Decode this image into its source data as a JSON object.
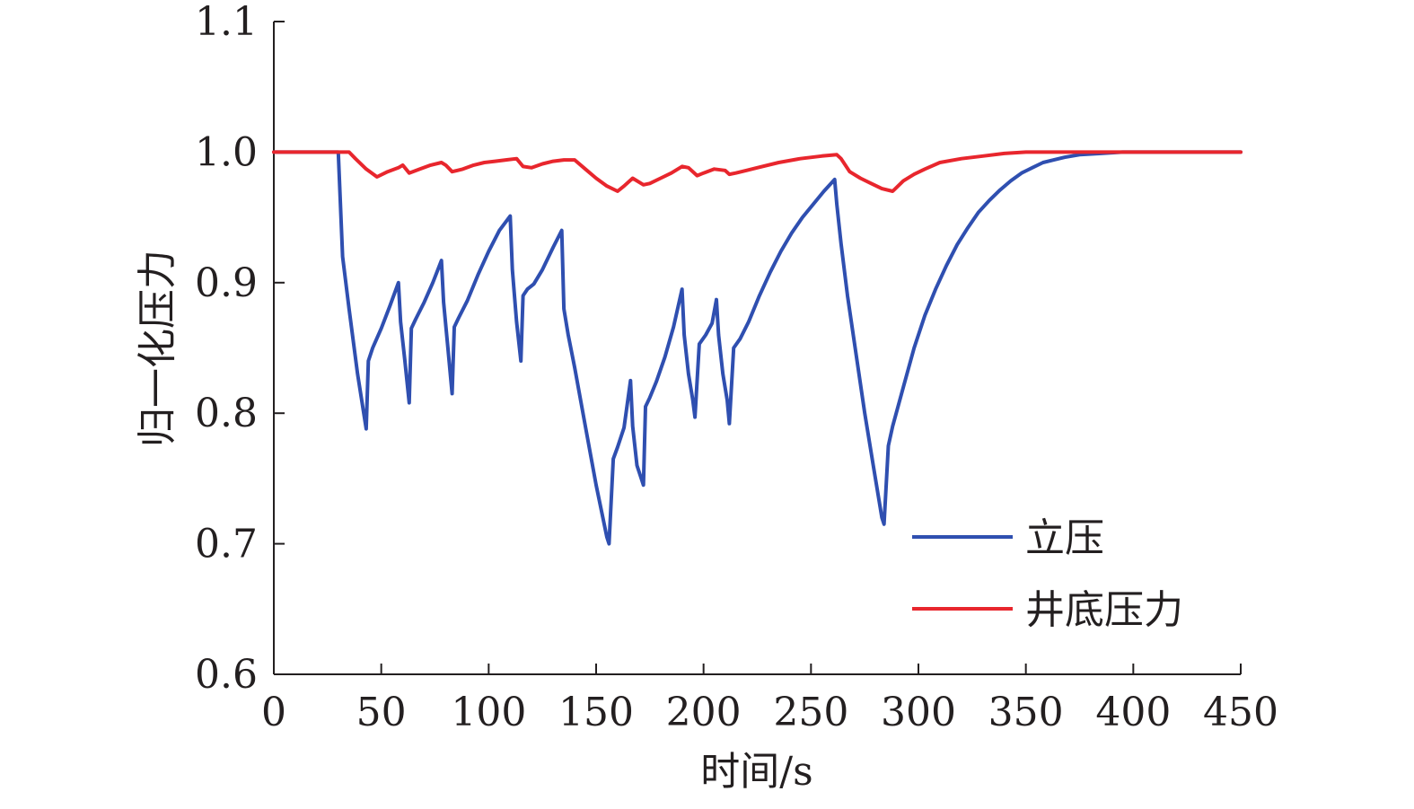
{
  "chart_data": {
    "type": "line",
    "xlabel": "时间/s",
    "ylabel": "归一化压力",
    "xlim": [
      0,
      450
    ],
    "ylim": [
      0.6,
      1.1
    ],
    "x_ticks": [
      0,
      50,
      100,
      150,
      200,
      250,
      300,
      350,
      400,
      450
    ],
    "y_ticks": [
      0.6,
      0.7,
      0.8,
      0.9,
      1.0,
      1.1
    ],
    "x_tick_labels": [
      "0",
      "50",
      "100",
      "150",
      "200",
      "250",
      "300",
      "350",
      "400",
      "450"
    ],
    "y_tick_labels": [
      "0.6",
      "0.7",
      "0.8",
      "0.9",
      "1.0",
      "1.1"
    ],
    "grid": false,
    "legend_position": "bottom-right",
    "series": [
      {
        "name": "立压",
        "color": "#2f4fb0",
        "x": [
          0,
          30,
          30.5,
          32,
          35,
          39,
          43,
          44,
          46,
          50,
          54,
          58,
          59,
          61,
          63,
          64,
          66,
          70,
          74,
          78,
          79,
          81,
          83,
          84,
          86,
          90,
          95,
          100,
          105,
          110,
          111,
          113,
          115,
          116,
          118,
          121,
          125,
          130,
          134,
          135,
          137,
          140,
          145,
          150,
          155,
          156,
          158,
          160,
          163,
          166,
          167,
          169,
          172,
          173,
          175,
          178,
          182,
          186,
          190,
          191,
          193,
          195,
          196,
          198,
          201,
          204,
          206,
          207,
          209,
          211,
          212,
          214,
          217,
          221,
          226,
          231,
          236,
          241,
          246,
          251,
          256,
          261,
          262,
          264,
          267,
          271,
          275,
          279,
          283,
          284,
          286,
          288,
          293,
          298,
          303,
          308,
          313,
          318,
          323,
          328,
          333,
          338,
          343,
          348,
          353,
          358,
          363,
          368,
          375,
          385,
          395,
          405,
          420,
          435,
          450
        ],
        "values": [
          1.0,
          1.0,
          0.98,
          0.92,
          0.88,
          0.83,
          0.788,
          0.84,
          0.85,
          0.865,
          0.882,
          0.9,
          0.87,
          0.84,
          0.808,
          0.865,
          0.872,
          0.885,
          0.9,
          0.917,
          0.885,
          0.85,
          0.815,
          0.866,
          0.873,
          0.886,
          0.906,
          0.924,
          0.94,
          0.951,
          0.91,
          0.87,
          0.84,
          0.89,
          0.895,
          0.899,
          0.91,
          0.927,
          0.94,
          0.88,
          0.86,
          0.835,
          0.79,
          0.745,
          0.705,
          0.7,
          0.765,
          0.774,
          0.789,
          0.825,
          0.79,
          0.76,
          0.745,
          0.805,
          0.812,
          0.824,
          0.843,
          0.866,
          0.895,
          0.86,
          0.83,
          0.81,
          0.797,
          0.853,
          0.86,
          0.869,
          0.887,
          0.86,
          0.83,
          0.81,
          0.792,
          0.85,
          0.857,
          0.87,
          0.89,
          0.908,
          0.924,
          0.938,
          0.95,
          0.96,
          0.97,
          0.979,
          0.96,
          0.93,
          0.89,
          0.845,
          0.8,
          0.76,
          0.72,
          0.715,
          0.775,
          0.79,
          0.82,
          0.85,
          0.875,
          0.895,
          0.913,
          0.929,
          0.942,
          0.954,
          0.963,
          0.971,
          0.978,
          0.984,
          0.988,
          0.992,
          0.994,
          0.996,
          0.998,
          0.999,
          1.0,
          1.0,
          1.0,
          1.0,
          1.0
        ]
      },
      {
        "name": "井底压力",
        "color": "#e8262d",
        "x": [
          0,
          30,
          35,
          38,
          43,
          48,
          53,
          58,
          60,
          63,
          68,
          73,
          78,
          80,
          83,
          88,
          93,
          98,
          103,
          108,
          113,
          116,
          120,
          125,
          130,
          135,
          140,
          145,
          150,
          155,
          160,
          163,
          167,
          172,
          175,
          180,
          185,
          190,
          193,
          197,
          200,
          205,
          210,
          212,
          215,
          220,
          225,
          235,
          245,
          255,
          262,
          264,
          268,
          273,
          278,
          283,
          288,
          293,
          298,
          303,
          310,
          320,
          330,
          340,
          350,
          365,
          385,
          405,
          430,
          450
        ],
        "values": [
          1.0,
          1.0,
          1.0,
          0.995,
          0.987,
          0.981,
          0.985,
          0.988,
          0.99,
          0.984,
          0.987,
          0.99,
          0.992,
          0.99,
          0.985,
          0.987,
          0.99,
          0.992,
          0.993,
          0.994,
          0.995,
          0.989,
          0.988,
          0.991,
          0.993,
          0.994,
          0.994,
          0.987,
          0.98,
          0.974,
          0.97,
          0.974,
          0.98,
          0.975,
          0.976,
          0.98,
          0.984,
          0.989,
          0.988,
          0.982,
          0.984,
          0.987,
          0.986,
          0.983,
          0.984,
          0.986,
          0.988,
          0.992,
          0.995,
          0.997,
          0.998,
          0.995,
          0.985,
          0.98,
          0.976,
          0.972,
          0.97,
          0.978,
          0.983,
          0.987,
          0.992,
          0.995,
          0.997,
          0.999,
          1.0,
          1.0,
          1.0,
          1.0,
          1.0,
          1.0
        ]
      }
    ]
  }
}
